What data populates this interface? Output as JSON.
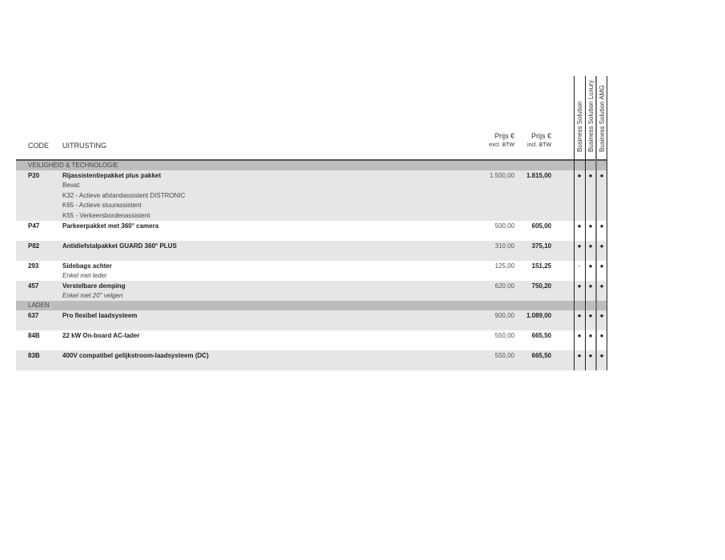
{
  "header": {
    "code": "CODE",
    "equipment": "UITRUSTING",
    "price_excl": "Prijs €",
    "price_excl_sub": "excl. BTW",
    "price_incl": "Prijs €",
    "price_incl_sub": "incl. BTW",
    "variants": [
      "Business Solution",
      "Business Solution Luxury",
      "Business Solution AMG"
    ]
  },
  "sections": [
    {
      "title": "VEILIGHEID & TECHNOLOGIE",
      "rows": [
        {
          "code": "P20",
          "name": "Rijassistentiepakket plus pakket",
          "details": [
            "Bevat:",
            "K32 - Actieve afstandassistent DISTRONIC",
            "K65 - Actieve stuurassistent",
            "K55 - Verkeersbordenassistent"
          ],
          "excl": "1.500,00",
          "incl": "1.815,00",
          "marks": [
            "●",
            "●",
            "●"
          ]
        },
        {
          "code": "P47",
          "name": "Parkeerpakket met 360° camera",
          "details": [],
          "excl": "500,00",
          "incl": "605,00",
          "marks": [
            "●",
            "●",
            "●"
          ]
        },
        {
          "code": "P82",
          "name": "Antidiefstalpakket GUARD 360° PLUS",
          "details": [],
          "excl": "310,00",
          "incl": "375,10",
          "marks": [
            "●",
            "●",
            "●"
          ]
        },
        {
          "code": "293",
          "name": "Sidebags achter",
          "details": [
            "Enkel met leder"
          ],
          "excl": "125,00",
          "incl": "151,25",
          "marks": [
            "-",
            "●",
            "●"
          ]
        },
        {
          "code": "457",
          "name": "Verstelbare demping",
          "details": [
            "Enkel met 20\" velgen"
          ],
          "excl": "620,00",
          "incl": "750,20",
          "marks": [
            "●",
            "●",
            "●"
          ]
        }
      ]
    },
    {
      "title": "LADEN",
      "rows": [
        {
          "code": "637",
          "name": "Pro flexibel laadsysteem",
          "details": [],
          "excl": "900,00",
          "incl": "1.089,00",
          "marks": [
            "●",
            "●",
            "●"
          ]
        },
        {
          "code": "84B",
          "name": "22 kW On-board AC-lader",
          "details": [],
          "excl": "550,00",
          "incl": "665,50",
          "marks": [
            "●",
            "●",
            "●"
          ]
        },
        {
          "code": "83B",
          "name": "400V compatibel gelijkstroom-laadsysteem (DC)",
          "details": [],
          "excl": "550,00",
          "incl": "665,50",
          "marks": [
            "●",
            "●",
            "●"
          ]
        }
      ]
    }
  ]
}
